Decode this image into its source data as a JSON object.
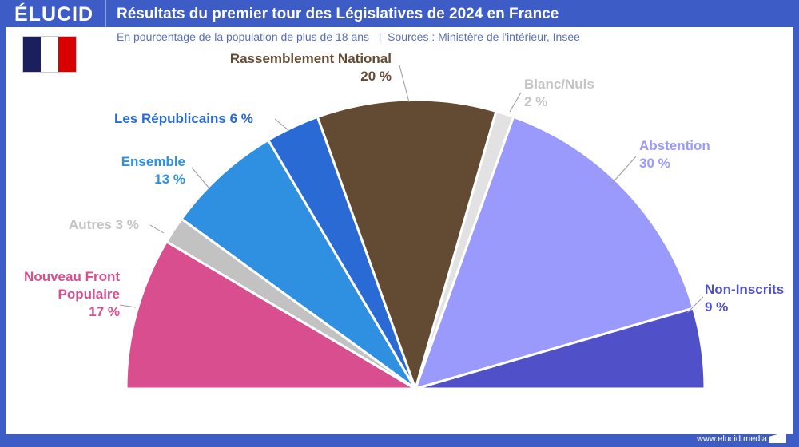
{
  "header": {
    "logo": "ÉLUCID",
    "title": "Résultats du premier tour des Législatives de 2024 en France"
  },
  "subtitle": "En pourcentage de la population de plus de 18 ans   |  Sources : Ministère de l'intérieur, Insee",
  "footer": {
    "url": "www.elucid.media"
  },
  "flag_colors": [
    "#1b1f5e",
    "#ffffff",
    "#d80000"
  ],
  "chart_data": {
    "type": "pie",
    "variant": "semicircle",
    "unit": "%",
    "slices": [
      {
        "label": "Nouveau Front Populaire",
        "value": 17,
        "display": "17 %",
        "color": "#d94e8f"
      },
      {
        "label": "Autres",
        "value": 3,
        "display": "3 %",
        "color": "#c2c2c2"
      },
      {
        "label": "Ensemble",
        "value": 13,
        "display": "13 %",
        "color": "#2f90e2"
      },
      {
        "label": "Les Républicains",
        "value": 6,
        "display": "6 %",
        "color": "#2a6ad4"
      },
      {
        "label": "Rassemblement National",
        "value": 20,
        "display": "20 %",
        "color": "#624a33"
      },
      {
        "label": "Blanc/Nuls",
        "value": 2,
        "display": "2 %",
        "color": "#e2e2e2"
      },
      {
        "label": "Abstention",
        "value": 30,
        "display": "30 %",
        "color": "#9a9afd"
      },
      {
        "label": "Non-Inscrits",
        "value": 9,
        "display": "9 %",
        "color": "#5050c8"
      }
    ]
  }
}
